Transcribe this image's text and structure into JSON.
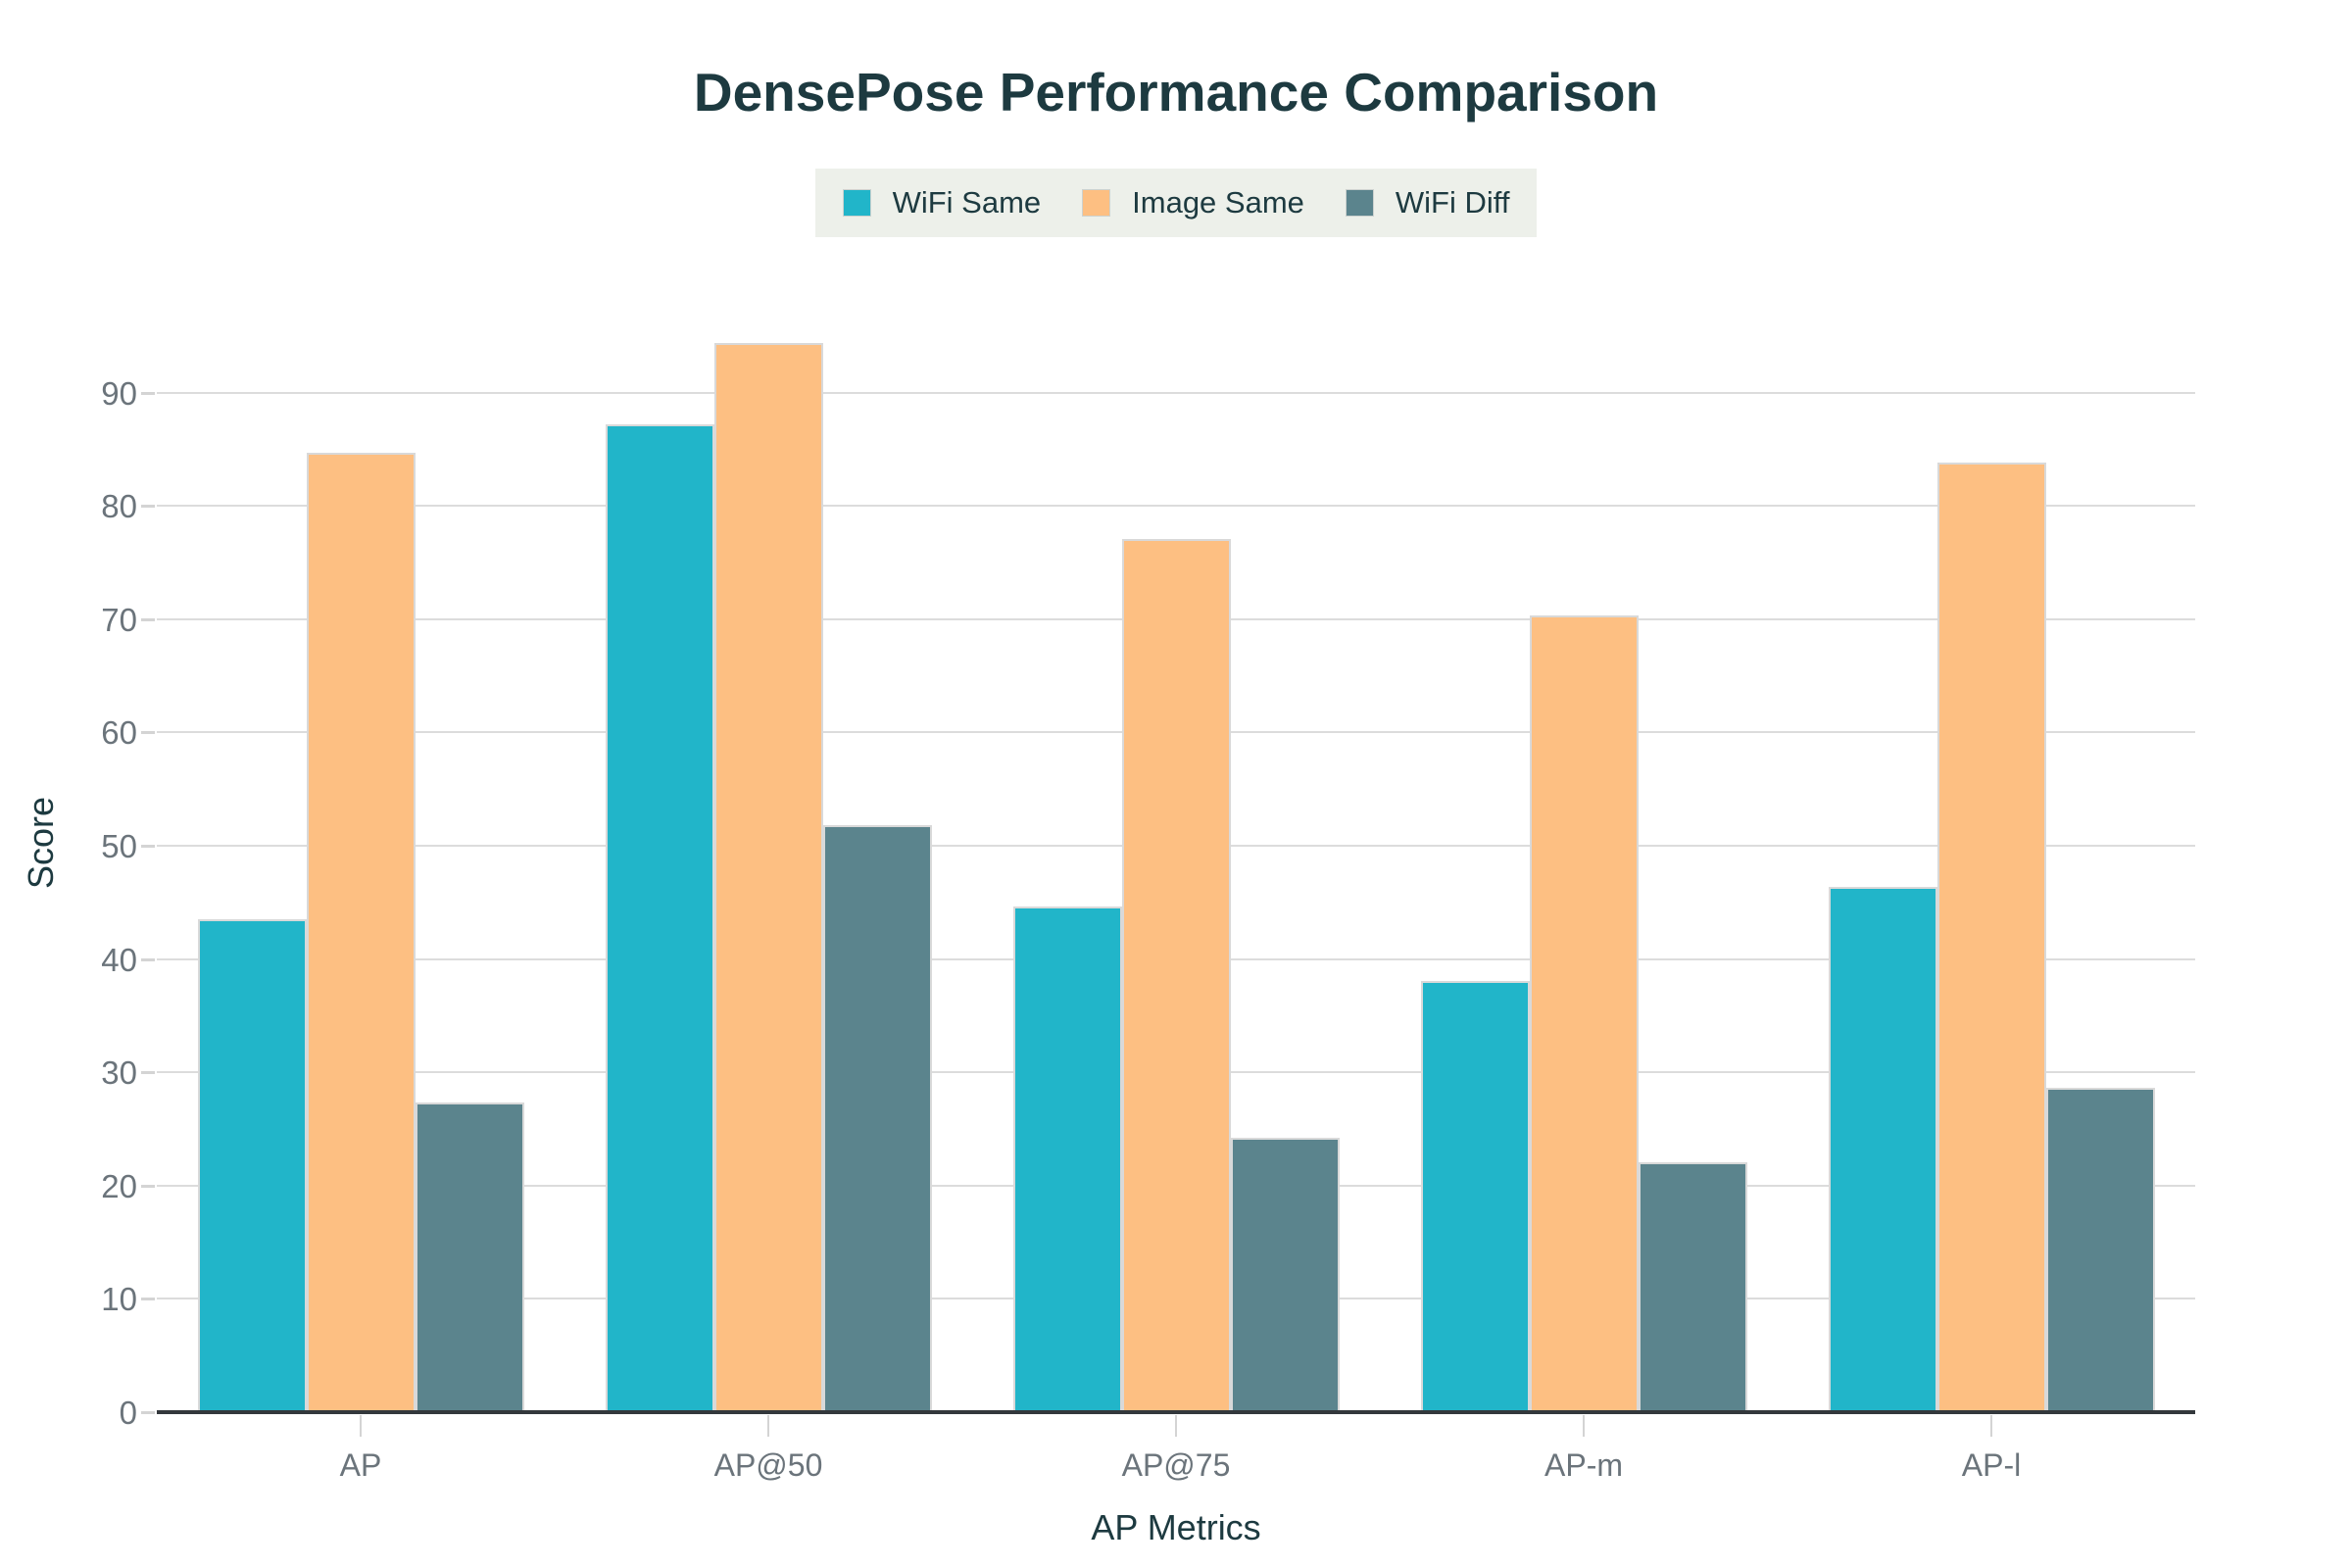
{
  "page": {
    "title": "DensePose Performance Comparison"
  },
  "legend": {
    "background": "#edf0ea",
    "items": [
      {
        "label": "WiFi Same",
        "color": "#21b5c9"
      },
      {
        "label": "Image Same",
        "color": "#fdbf82"
      },
      {
        "label": "WiFi Diff",
        "color": "#5b848d"
      }
    ]
  },
  "chart_data": {
    "type": "bar",
    "title": "DensePose Performance Comparison",
    "categories": [
      "AP",
      "AP@50",
      "AP@75",
      "AP-m",
      "AP-l"
    ],
    "series": [
      {
        "name": "WiFi Same",
        "color": "#21b5c9",
        "values": [
          43.5,
          87.2,
          44.6,
          38.1,
          46.4
        ]
      },
      {
        "name": "Image Same",
        "color": "#fdbf82",
        "values": [
          84.7,
          94.4,
          77.1,
          70.3,
          83.8
        ]
      },
      {
        "name": "WiFi Diff",
        "color": "#5b848d",
        "values": [
          27.3,
          51.8,
          24.2,
          22.1,
          28.6
        ]
      }
    ],
    "xlabel": "AP Metrics",
    "ylabel": "Score",
    "ylim": [
      0,
      100
    ],
    "yticks": [
      0,
      10,
      20,
      30,
      40,
      50,
      60,
      70,
      80,
      90
    ],
    "grid": true,
    "legend_position": "top-center"
  },
  "colors": {
    "title_text": "#1d3a40",
    "axis_title_text": "#1d3a40",
    "tick_text": "#6b747b",
    "gridline": "#dcdcdc",
    "tick_mark": "#d4d4d4",
    "axis_line": "#33383c",
    "bar_border": "#d9d9d9"
  }
}
